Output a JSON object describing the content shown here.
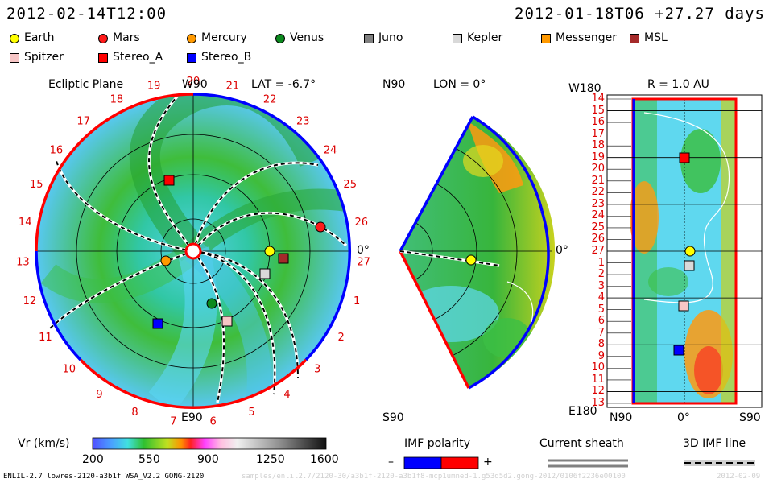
{
  "header": {
    "datetime": "2012-02-14T12:00",
    "reference": "2012-01-18T06 +27.27 days"
  },
  "legend": {
    "items": [
      {
        "name": "Earth",
        "color": "#ffff00",
        "shape": "circle"
      },
      {
        "name": "Mars",
        "color": "#ff1a1a",
        "shape": "circle"
      },
      {
        "name": "Mercury",
        "color": "#ff9900",
        "shape": "circle"
      },
      {
        "name": "Venus",
        "color": "#0b8a1e",
        "shape": "circle"
      },
      {
        "name": "Juno",
        "color": "#808080",
        "shape": "square"
      },
      {
        "name": "Kepler",
        "color": "#d9d9d9",
        "shape": "square"
      },
      {
        "name": "Messenger",
        "color": "#ff9900",
        "shape": "square"
      },
      {
        "name": "MSL",
        "color": "#a52a2a",
        "shape": "square"
      },
      {
        "name": "Spitzer",
        "color": "#f7c6c6",
        "shape": "square"
      },
      {
        "name": "Stereo_A",
        "color": "#ff0000",
        "shape": "square"
      },
      {
        "name": "Stereo_B",
        "color": "#0000ff",
        "shape": "square"
      }
    ]
  },
  "panels": {
    "ecliptic": {
      "title": "Ecliptic Plane",
      "top_label": "W90",
      "bottom_label": "E90",
      "lat_label": "LAT = -6.7°",
      "right_label": "0°",
      "carrington_numbers": [
        "20",
        "21",
        "22",
        "23",
        "24",
        "25",
        "26",
        "27",
        "1",
        "2",
        "3",
        "4",
        "5",
        "6",
        "7",
        "8",
        "9",
        "10",
        "11",
        "12",
        "13",
        "14",
        "15",
        "16",
        "17",
        "18",
        "19"
      ]
    },
    "meridional": {
      "top_label": "N90",
      "bottom_label": "S90",
      "lon_label": "LON = 0°",
      "right_label": "0°"
    },
    "radial": {
      "title": "R = 1.0 AU",
      "top_left_label": "W180",
      "bottom_left_label": "E180",
      "y_ticks": [
        "14",
        "15",
        "16",
        "17",
        "18",
        "19",
        "20",
        "21",
        "22",
        "23",
        "24",
        "25",
        "26",
        "27",
        "1",
        "2",
        "3",
        "4",
        "5",
        "6",
        "7",
        "8",
        "9",
        "10",
        "11",
        "12",
        "13"
      ],
      "x_ticks": [
        "N90",
        "0°",
        "S90"
      ]
    }
  },
  "colorbar": {
    "label": "Vr (km/s)",
    "ticks": [
      "200",
      "550",
      "900",
      "1250",
      "1600"
    ]
  },
  "imf": {
    "label": "IMF polarity",
    "minus": "–",
    "plus": "+",
    "minus_color": "#0000ff",
    "plus_color": "#ff0000"
  },
  "current_sheath": {
    "label": "Current sheath"
  },
  "imf_line": {
    "label": "3D IMF line"
  },
  "footer": {
    "model": "ENLIL-2.7 lowres-2120-a3b1f WSA_V2.2 GONG-2120",
    "path": "samples/enlil2.7/2120-30/a3b1f-2120-a3b1f8-mcp1umned-1.g53d5d2.gong-2012/0106f2236e00100",
    "trail": "2012-02-09"
  }
}
